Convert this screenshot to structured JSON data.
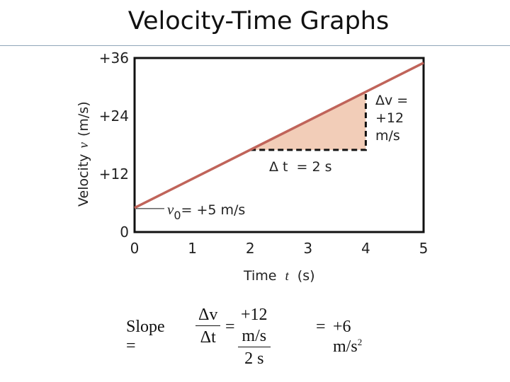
{
  "slide": {
    "title": "Velocity-Time Graphs"
  },
  "chart_data": {
    "type": "line",
    "x": [
      0,
      5
    ],
    "y": [
      5,
      35
    ],
    "xlabel": "Time",
    "xlabel_var": "t",
    "xlabel_unit": "(s)",
    "ylabel": "Velocity",
    "ylabel_var": "v",
    "ylabel_unit": "(m/s)",
    "xlim": [
      0,
      5
    ],
    "ylim": [
      0,
      36
    ],
    "x_ticks": [
      0,
      1,
      2,
      3,
      4,
      5
    ],
    "x_tick_labels": [
      "0",
      "1",
      "2",
      "3",
      "4",
      "5"
    ],
    "y_ticks": [
      0,
      12,
      24,
      36
    ],
    "y_tick_labels": [
      "0",
      "+12",
      "+24",
      "+36"
    ],
    "grid": false,
    "line_color": "#c0645a",
    "fill_color": "#f2cdb8",
    "slope_triangle": {
      "x_start": 2,
      "x_end": 4
    },
    "annotations": {
      "delta_v_symbol": "Δv =",
      "delta_v_value": "+12",
      "delta_v_unit": "m/s",
      "delta_t_label": "Δ t",
      "delta_t_value": "= 2 s",
      "v0_symbol": "v",
      "v0_subscript": "0",
      "v0_value": "= +5 m/s"
    }
  },
  "formula": {
    "slope_label": "Slope =",
    "frac1_num": "Δv",
    "frac1_den": "Δt",
    "eq1": "=",
    "frac2_num": "+12 m/s",
    "frac2_den": "2 s",
    "eq2": "=",
    "result": "+6 m/s",
    "result_exp": "2"
  }
}
